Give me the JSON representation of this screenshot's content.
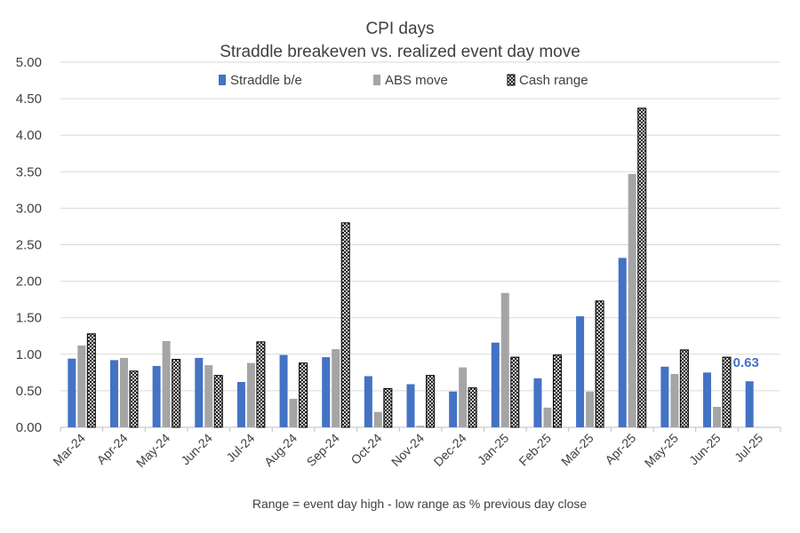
{
  "chart_data": {
    "type": "bar",
    "title": "CPI days",
    "subtitle": "Straddle breakeven vs. realized event day move",
    "xlabel": "",
    "ylabel": "",
    "ylim": [
      0,
      5
    ],
    "yticks": [
      "0.00",
      "0.50",
      "1.00",
      "1.50",
      "2.00",
      "2.50",
      "3.00",
      "3.50",
      "4.00",
      "4.50",
      "5.00"
    ],
    "grid": true,
    "legend_position": "top",
    "categories": [
      "Mar-24",
      "Apr-24",
      "May-24",
      "Jun-24",
      "Jul-24",
      "Aug-24",
      "Sep-24",
      "Oct-24",
      "Nov-24",
      "Dec-24",
      "Jan-25",
      "Feb-25",
      "Mar-25",
      "Apr-25",
      "May-25",
      "Jun-25",
      "Jul-25"
    ],
    "series": [
      {
        "name": "Straddle b/e",
        "color": "#4472c4",
        "style": "solid",
        "values": [
          0.94,
          0.92,
          0.84,
          0.95,
          0.62,
          0.99,
          0.96,
          0.7,
          0.59,
          0.49,
          1.16,
          0.67,
          1.52,
          2.32,
          0.83,
          0.75,
          0.63
        ]
      },
      {
        "name": "ABS move",
        "color": "#a5a5a5",
        "style": "solid",
        "values": [
          1.12,
          0.95,
          1.18,
          0.85,
          0.88,
          0.39,
          1.07,
          0.21,
          0.02,
          0.82,
          1.84,
          0.27,
          0.49,
          3.47,
          0.73,
          0.28,
          null
        ]
      },
      {
        "name": "Cash range",
        "color": "#ffffff",
        "style": "crosshatch",
        "values": [
          1.28,
          0.77,
          0.93,
          0.71,
          1.17,
          0.88,
          2.8,
          0.53,
          0.71,
          0.54,
          0.96,
          0.99,
          1.73,
          4.37,
          1.06,
          0.96,
          null
        ]
      }
    ],
    "annotations": [
      {
        "text": "0.63",
        "category": "Jul-25",
        "series": "Straddle b/e"
      }
    ],
    "note": "Range = event day high - low range as % previous day close"
  }
}
